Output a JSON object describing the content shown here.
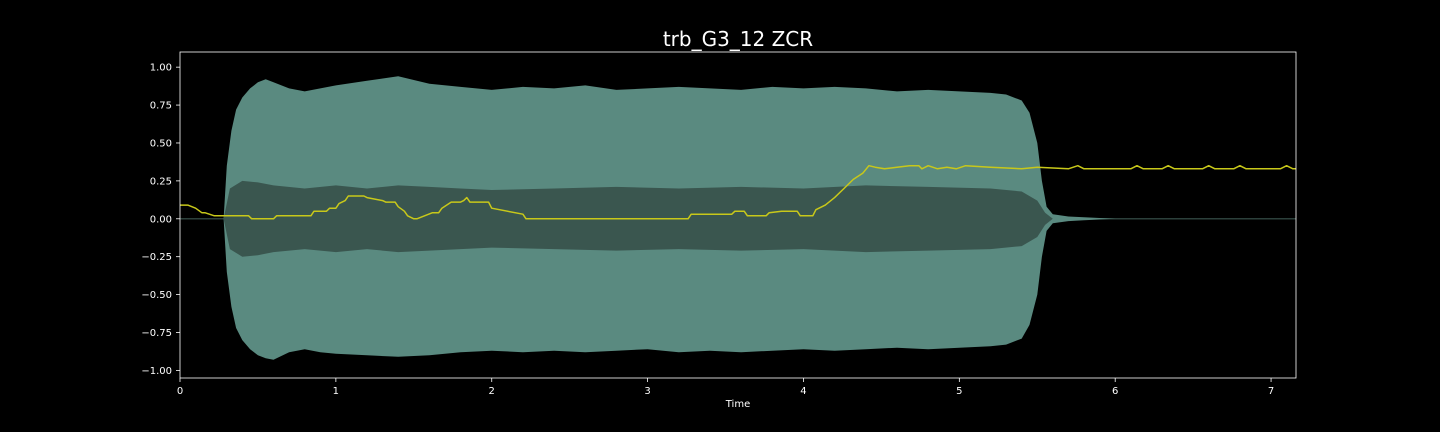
{
  "chart_data": {
    "type": "line",
    "title": "trb_G3_12 ZCR",
    "xlabel": "Time",
    "ylabel": "",
    "xlim": [
      0,
      7.16
    ],
    "ylim": [
      -1.05,
      1.1
    ],
    "xticks": [
      0,
      1,
      2,
      3,
      4,
      5,
      6,
      7
    ],
    "yticks": [
      -1.0,
      -0.75,
      -0.5,
      -0.25,
      0.0,
      0.25,
      0.5,
      0.75,
      1.0
    ],
    "grid": false,
    "colors": {
      "background": "#000000",
      "axes_frame": "#ffffff",
      "waveform_outer": "#5a8a80",
      "waveform_inner": "#3a564f",
      "zcr_line": "#c8c81a"
    },
    "series": [
      {
        "kind": "waveform-envelope",
        "layer": "outer",
        "x": [
          0,
          0.28,
          0.3,
          0.33,
          0.36,
          0.4,
          0.45,
          0.5,
          0.55,
          0.6,
          0.7,
          0.8,
          0.9,
          1.0,
          1.2,
          1.4,
          1.6,
          1.8,
          2.0,
          2.2,
          2.4,
          2.6,
          2.8,
          3.0,
          3.2,
          3.4,
          3.6,
          3.8,
          4.0,
          4.2,
          4.4,
          4.6,
          4.8,
          5.0,
          5.2,
          5.3,
          5.4,
          5.45,
          5.5,
          5.53,
          5.56,
          5.6,
          5.7,
          5.8,
          5.9,
          6.0,
          7.16
        ],
        "upper": [
          0,
          0,
          0.35,
          0.58,
          0.72,
          0.8,
          0.86,
          0.9,
          0.92,
          0.9,
          0.86,
          0.84,
          0.86,
          0.88,
          0.91,
          0.94,
          0.89,
          0.87,
          0.85,
          0.87,
          0.86,
          0.88,
          0.85,
          0.86,
          0.87,
          0.86,
          0.85,
          0.87,
          0.86,
          0.87,
          0.86,
          0.84,
          0.85,
          0.84,
          0.83,
          0.82,
          0.78,
          0.7,
          0.5,
          0.25,
          0.08,
          0.03,
          0.015,
          0.01,
          0.005,
          0,
          0
        ],
        "lower": [
          0,
          0,
          -0.35,
          -0.58,
          -0.72,
          -0.8,
          -0.86,
          -0.9,
          -0.92,
          -0.93,
          -0.88,
          -0.86,
          -0.88,
          -0.89,
          -0.9,
          -0.91,
          -0.9,
          -0.88,
          -0.87,
          -0.88,
          -0.87,
          -0.88,
          -0.87,
          -0.86,
          -0.88,
          -0.87,
          -0.88,
          -0.87,
          -0.86,
          -0.87,
          -0.86,
          -0.85,
          -0.86,
          -0.85,
          -0.84,
          -0.83,
          -0.79,
          -0.7,
          -0.5,
          -0.25,
          -0.08,
          -0.03,
          -0.015,
          -0.01,
          -0.005,
          0,
          0
        ]
      },
      {
        "kind": "waveform-envelope",
        "layer": "inner",
        "x": [
          0,
          0.28,
          0.32,
          0.4,
          0.5,
          0.6,
          0.8,
          1.0,
          1.2,
          1.4,
          1.6,
          1.8,
          2.0,
          2.4,
          2.8,
          3.2,
          3.6,
          4.0,
          4.4,
          4.8,
          5.2,
          5.4,
          5.5,
          5.55,
          5.6,
          7.16
        ],
        "upper": [
          0,
          0,
          0.2,
          0.25,
          0.24,
          0.22,
          0.2,
          0.22,
          0.2,
          0.22,
          0.21,
          0.2,
          0.19,
          0.2,
          0.21,
          0.2,
          0.21,
          0.2,
          0.22,
          0.21,
          0.2,
          0.18,
          0.12,
          0.04,
          0,
          0
        ],
        "lower": [
          0,
          0,
          -0.2,
          -0.25,
          -0.24,
          -0.22,
          -0.2,
          -0.22,
          -0.2,
          -0.22,
          -0.21,
          -0.2,
          -0.19,
          -0.2,
          -0.21,
          -0.2,
          -0.21,
          -0.2,
          -0.22,
          -0.21,
          -0.2,
          -0.18,
          -0.12,
          -0.04,
          0,
          0
        ]
      },
      {
        "kind": "line",
        "x": [
          0,
          0.05,
          0.1,
          0.14,
          0.16,
          0.22,
          0.24,
          0.44,
          0.46,
          0.6,
          0.62,
          0.84,
          0.86,
          0.94,
          0.96,
          1.0,
          1.02,
          1.06,
          1.08,
          1.18,
          1.2,
          1.3,
          1.32,
          1.38,
          1.4,
          1.44,
          1.46,
          1.5,
          1.52,
          1.62,
          1.64,
          1.66,
          1.68,
          1.74,
          1.76,
          1.8,
          1.82,
          1.84,
          1.86,
          1.98,
          2.0,
          2.2,
          2.22,
          3.26,
          3.28,
          3.54,
          3.56,
          3.62,
          3.64,
          3.76,
          3.78,
          3.86,
          3.88,
          3.96,
          3.98,
          4.06,
          4.08,
          4.14,
          4.2,
          4.26,
          4.32,
          4.38,
          4.42,
          4.46,
          4.52,
          4.6,
          4.68,
          4.74,
          4.76,
          4.8,
          4.86,
          4.92,
          4.98,
          5.04,
          5.2,
          5.4,
          5.5,
          5.7,
          5.76,
          5.8,
          6.1,
          6.14,
          6.18,
          6.3,
          6.34,
          6.38,
          6.56,
          6.6,
          6.64,
          6.76,
          6.8,
          6.84,
          7.06,
          7.1,
          7.14,
          7.16
        ],
        "y": [
          0.09,
          0.09,
          0.07,
          0.04,
          0.04,
          0.02,
          0.02,
          0.02,
          0.0,
          0.0,
          0.02,
          0.02,
          0.05,
          0.05,
          0.07,
          0.07,
          0.1,
          0.12,
          0.15,
          0.15,
          0.14,
          0.12,
          0.11,
          0.11,
          0.08,
          0.05,
          0.02,
          0.0,
          0.0,
          0.04,
          0.04,
          0.04,
          0.07,
          0.11,
          0.11,
          0.11,
          0.12,
          0.14,
          0.11,
          0.11,
          0.07,
          0.03,
          0.0,
          0.0,
          0.03,
          0.03,
          0.05,
          0.05,
          0.02,
          0.02,
          0.04,
          0.05,
          0.05,
          0.05,
          0.02,
          0.02,
          0.06,
          0.09,
          0.14,
          0.2,
          0.26,
          0.3,
          0.35,
          0.34,
          0.33,
          0.34,
          0.35,
          0.35,
          0.33,
          0.35,
          0.33,
          0.34,
          0.33,
          0.35,
          0.34,
          0.33,
          0.34,
          0.33,
          0.35,
          0.33,
          0.33,
          0.35,
          0.33,
          0.33,
          0.35,
          0.33,
          0.33,
          0.35,
          0.33,
          0.33,
          0.35,
          0.33,
          0.33,
          0.35,
          0.33,
          0.33
        ]
      }
    ]
  }
}
